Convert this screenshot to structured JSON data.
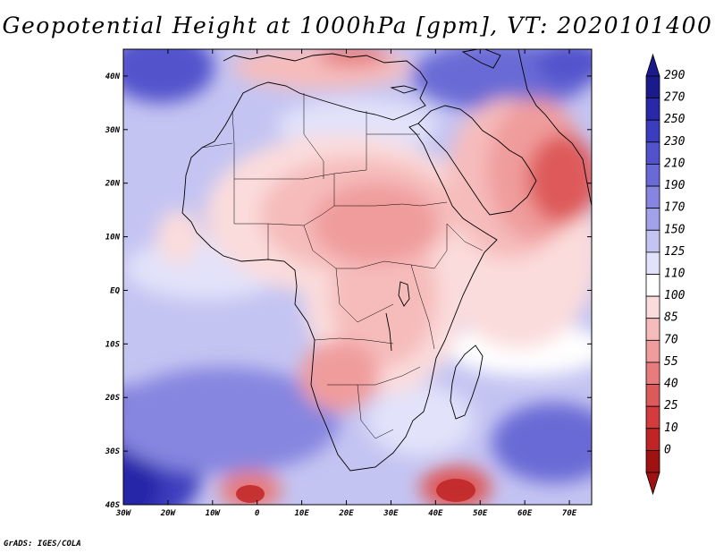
{
  "title": "Geopotential Height at 1000hPa [gpm], VT: 2020101400",
  "credit": "GrADS: IGES/COLA",
  "map": {
    "lat_labels": [
      "40N",
      "30N",
      "20N",
      "10N",
      "EQ",
      "10S",
      "20S",
      "30S",
      "40S"
    ],
    "lon_labels": [
      "30W",
      "20W",
      "10W",
      "0",
      "10E",
      "20E",
      "30E",
      "40E",
      "50E",
      "60E",
      "70E"
    ],
    "lon_range": [
      -30,
      75
    ],
    "lat_range": [
      -40,
      45
    ]
  },
  "colorbar": {
    "levels": [
      "290",
      "270",
      "250",
      "230",
      "210",
      "190",
      "170",
      "150",
      "125",
      "110",
      "100",
      "85",
      "70",
      "55",
      "40",
      "25",
      "10",
      "0"
    ],
    "colors": [
      "#1a1a8c",
      "#2828a8",
      "#3c3cbe",
      "#5252cc",
      "#6a6ad6",
      "#8686e0",
      "#a2a2ea",
      "#c4c4f2",
      "#e2e2fa",
      "#ffffff",
      "#fbdcdc",
      "#f6bcbc",
      "#f09c9c",
      "#e87c7c",
      "#de5a5a",
      "#d23c3c",
      "#c02424",
      "#a01212"
    ]
  }
}
